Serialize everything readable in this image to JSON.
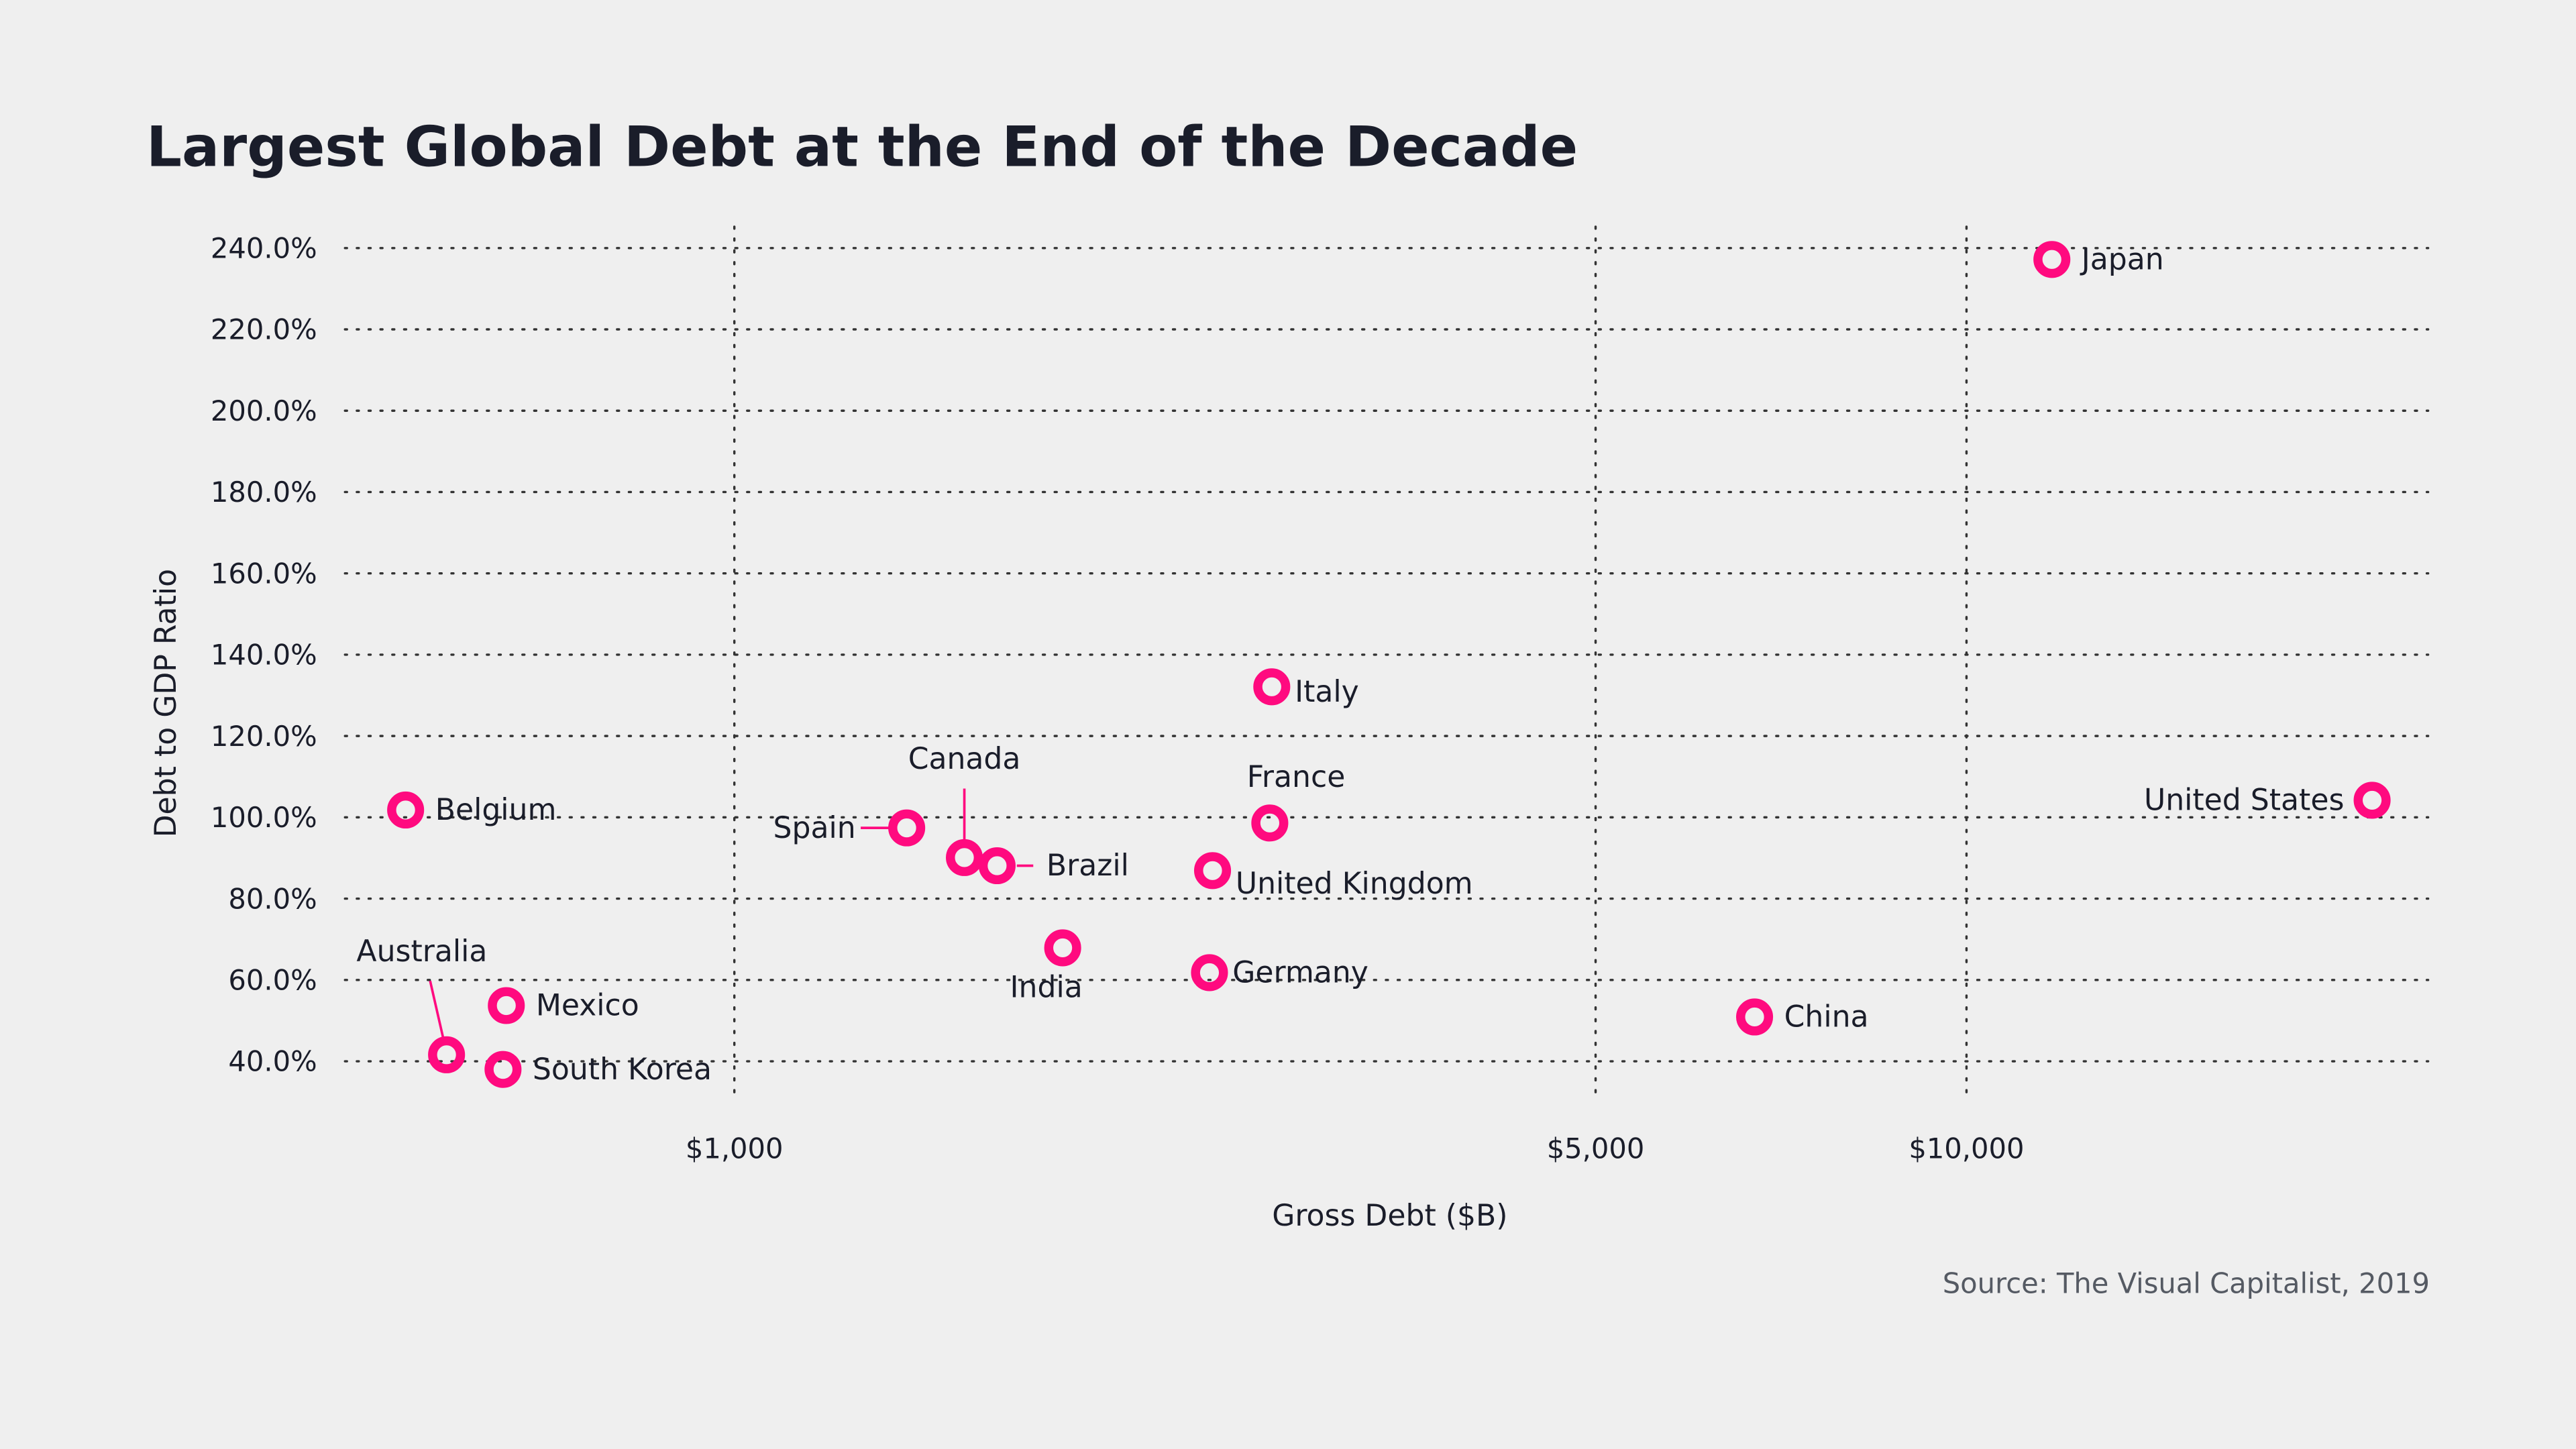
{
  "chart_data": {
    "type": "scatter",
    "title": "Largest Global Debt at the End of the Decade",
    "xlabel": "Gross Debt ($B)",
    "ylabel": "Debt to GDP Ratio",
    "x_scale": "log",
    "xlim": [
      483,
      23700
    ],
    "ylim": [
      30,
      245
    ],
    "x_ticks": [
      1000,
      5000,
      10000
    ],
    "x_tick_labels": [
      "$1,000",
      "$5,000",
      "$10,000"
    ],
    "y_ticks": [
      40,
      60,
      80,
      100,
      120,
      140,
      160,
      180,
      200,
      220,
      240
    ],
    "y_tick_labels": [
      "40.0%",
      "60.0%",
      "80.0%",
      "100.0%",
      "120.0%",
      "140.0%",
      "160.0%",
      "180.0%",
      "200.0%",
      "220.0%",
      "240.0%"
    ],
    "grid": true,
    "marker_color": "#ff0a7f",
    "points": [
      {
        "label": "Japan",
        "x": 11730,
        "y": 237.2
      },
      {
        "label": "United States",
        "x": 21340,
        "y": 104.2
      },
      {
        "label": "Italy",
        "x": 2730,
        "y": 132.1
      },
      {
        "label": "France",
        "x": 2720,
        "y": 98.6
      },
      {
        "label": "United Kingdom",
        "x": 2444,
        "y": 86.9
      },
      {
        "label": "Germany",
        "x": 2430,
        "y": 61.8
      },
      {
        "label": "China",
        "x": 6730,
        "y": 50.9
      },
      {
        "label": "India",
        "x": 1847,
        "y": 67.9
      },
      {
        "label": "Brazil",
        "x": 1634,
        "y": 88.1
      },
      {
        "label": "Canada",
        "x": 1537,
        "y": 90.1
      },
      {
        "label": "Spain",
        "x": 1380,
        "y": 97.4
      },
      {
        "label": "Belgium",
        "x": 541,
        "y": 101.8
      },
      {
        "label": "Mexico",
        "x": 653,
        "y": 53.7
      },
      {
        "label": "Australia",
        "x": 584,
        "y": 41.6
      },
      {
        "label": "South Korea",
        "x": 649,
        "y": 38.0
      }
    ]
  },
  "source": "Source: The Visual Capitalist, 2019"
}
